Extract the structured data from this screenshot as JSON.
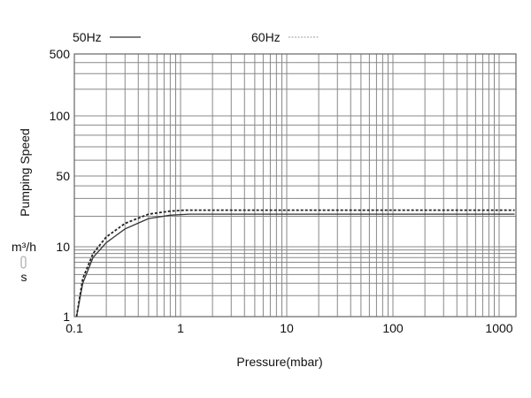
{
  "chart_data": {
    "type": "line",
    "title": "",
    "xlabel": "Pressure(mbar)",
    "ylabel": "Pumping Speed",
    "yunit": "m³/h",
    "ysymbol": "s",
    "xscale": "log",
    "yscale": "log",
    "xlim": [
      0.1,
      1400
    ],
    "ylim": [
      1,
      500
    ],
    "grid": true,
    "legend_placement": "top",
    "xticks": [
      {
        "v": 0.1,
        "label": "0.1"
      },
      {
        "v": 1,
        "label": "1"
      },
      {
        "v": 10,
        "label": "10"
      },
      {
        "v": 100,
        "label": "100"
      },
      {
        "v": 1000,
        "label": "1000"
      }
    ],
    "yticks": [
      {
        "v": 1,
        "label": "1"
      },
      {
        "v": 10,
        "label": "10"
      },
      {
        "v": 50,
        "label": "50"
      },
      {
        "v": 100,
        "label": "100"
      },
      {
        "v": 500,
        "label": "500"
      }
    ],
    "series": [
      {
        "name": "50Hz",
        "style": "solid",
        "color": "#333333",
        "points": [
          [
            0.105,
            1
          ],
          [
            0.12,
            3
          ],
          [
            0.15,
            7
          ],
          [
            0.2,
            11
          ],
          [
            0.3,
            15
          ],
          [
            0.5,
            19
          ],
          [
            0.8,
            20.5
          ],
          [
            1.2,
            21
          ],
          [
            1000,
            21
          ],
          [
            1400,
            21
          ]
        ]
      },
      {
        "name": "60Hz",
        "style": "dashed",
        "color": "#222222",
        "points": [
          [
            0.105,
            1
          ],
          [
            0.12,
            3.5
          ],
          [
            0.15,
            8
          ],
          [
            0.2,
            12.5
          ],
          [
            0.3,
            17
          ],
          [
            0.5,
            21
          ],
          [
            0.8,
            22.5
          ],
          [
            1.1,
            23
          ],
          [
            1000,
            23
          ],
          [
            1400,
            23
          ]
        ]
      }
    ]
  }
}
